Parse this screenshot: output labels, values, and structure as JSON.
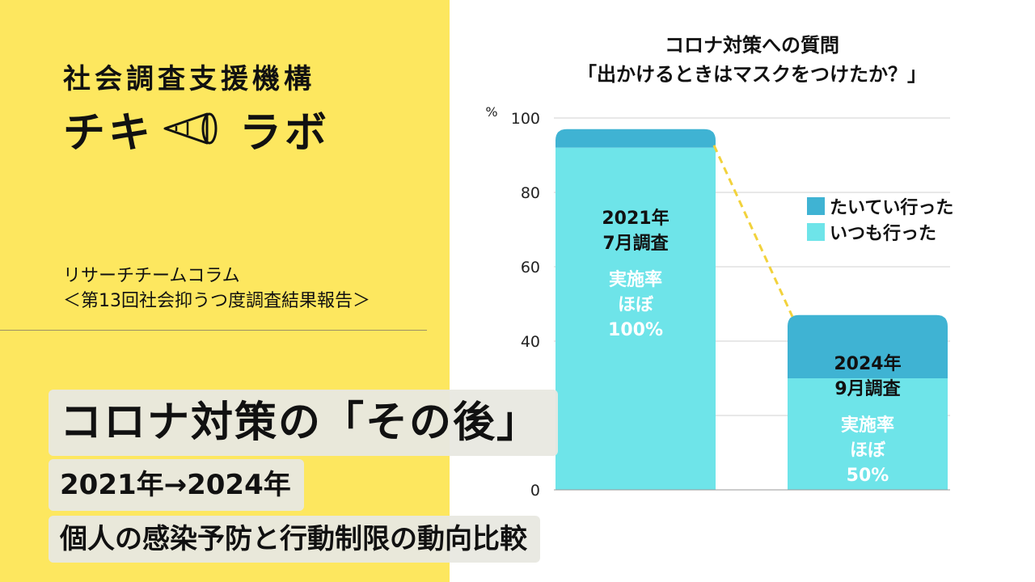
{
  "branding": {
    "org_name": "社会調査支援機構",
    "brand_left": "チキ",
    "brand_right": "ラボ",
    "subtitle_line1": "リサーチチームコラム",
    "subtitle_line2": "＜第13回社会抑うつ度調査結果報告＞"
  },
  "headline": {
    "main": "コロナ対策の「その後」",
    "years": "2021年→2024年",
    "description": "個人の感染予防と行動制限の動向比較"
  },
  "colors": {
    "background_left": "#fde75f",
    "series_always": "#6ee4e9",
    "series_mostly": "#3fb3d3",
    "connector": "#f2d23c"
  },
  "chart_data": {
    "type": "bar",
    "stacked": true,
    "title_line1": "コロナ対策への質問",
    "title_line2": "「出かけるときはマスクをつけたか？」",
    "y_unit": "%",
    "ylim": [
      0,
      100
    ],
    "y_ticks": [
      0,
      20,
      40,
      60,
      80,
      100
    ],
    "y_tick_labels": [
      "0",
      "",
      "40",
      "60",
      "80",
      "100"
    ],
    "grid": true,
    "legend_position": "right",
    "categories": [
      "2021年7月調査",
      "2024年9月調査"
    ],
    "series": [
      {
        "name": "いつも行った",
        "values": [
          92,
          30
        ],
        "color": "#6ee4e9"
      },
      {
        "name": "たいてい行った",
        "values": [
          5,
          17
        ],
        "color": "#3fb3d3"
      }
    ],
    "legend_order": [
      "たいてい行った",
      "いつも行った"
    ],
    "bar_labels": [
      {
        "survey_line1": "2021年",
        "survey_line2": "7月調査",
        "rate_label": "実施率",
        "rate_approx": "ほぼ",
        "rate_value": "100%"
      },
      {
        "survey_line1": "2024年",
        "survey_line2": "9月調査",
        "rate_label": "実施率",
        "rate_approx": "ほぼ",
        "rate_value": "50%"
      }
    ]
  }
}
